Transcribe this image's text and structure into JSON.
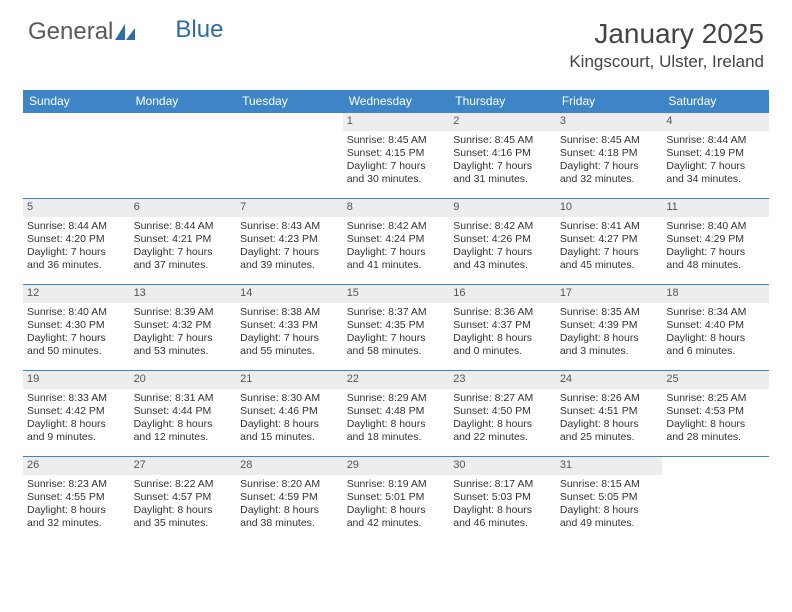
{
  "logo": {
    "text1": "General",
    "text2": "Blue"
  },
  "title": "January 2025",
  "location": "Kingscourt, Ulster, Ireland",
  "header_bg": "#3d85c6",
  "daynum_bg": "#ededed",
  "border_color": "#3d85c6",
  "font_size_title": 28,
  "font_size_location": 17,
  "font_size_dayhdr": 12,
  "font_size_cell": 10.5,
  "dayNames": [
    "Sunday",
    "Monday",
    "Tuesday",
    "Wednesday",
    "Thursday",
    "Friday",
    "Saturday"
  ],
  "weeks": [
    [
      {
        "n": "",
        "sr": "",
        "ss": "",
        "dl": ""
      },
      {
        "n": "",
        "sr": "",
        "ss": "",
        "dl": ""
      },
      {
        "n": "",
        "sr": "",
        "ss": "",
        "dl": ""
      },
      {
        "n": "1",
        "sr": "Sunrise: 8:45 AM",
        "ss": "Sunset: 4:15 PM",
        "dl": "Daylight: 7 hours and 30 minutes."
      },
      {
        "n": "2",
        "sr": "Sunrise: 8:45 AM",
        "ss": "Sunset: 4:16 PM",
        "dl": "Daylight: 7 hours and 31 minutes."
      },
      {
        "n": "3",
        "sr": "Sunrise: 8:45 AM",
        "ss": "Sunset: 4:18 PM",
        "dl": "Daylight: 7 hours and 32 minutes."
      },
      {
        "n": "4",
        "sr": "Sunrise: 8:44 AM",
        "ss": "Sunset: 4:19 PM",
        "dl": "Daylight: 7 hours and 34 minutes."
      }
    ],
    [
      {
        "n": "5",
        "sr": "Sunrise: 8:44 AM",
        "ss": "Sunset: 4:20 PM",
        "dl": "Daylight: 7 hours and 36 minutes."
      },
      {
        "n": "6",
        "sr": "Sunrise: 8:44 AM",
        "ss": "Sunset: 4:21 PM",
        "dl": "Daylight: 7 hours and 37 minutes."
      },
      {
        "n": "7",
        "sr": "Sunrise: 8:43 AM",
        "ss": "Sunset: 4:23 PM",
        "dl": "Daylight: 7 hours and 39 minutes."
      },
      {
        "n": "8",
        "sr": "Sunrise: 8:42 AM",
        "ss": "Sunset: 4:24 PM",
        "dl": "Daylight: 7 hours and 41 minutes."
      },
      {
        "n": "9",
        "sr": "Sunrise: 8:42 AM",
        "ss": "Sunset: 4:26 PM",
        "dl": "Daylight: 7 hours and 43 minutes."
      },
      {
        "n": "10",
        "sr": "Sunrise: 8:41 AM",
        "ss": "Sunset: 4:27 PM",
        "dl": "Daylight: 7 hours and 45 minutes."
      },
      {
        "n": "11",
        "sr": "Sunrise: 8:40 AM",
        "ss": "Sunset: 4:29 PM",
        "dl": "Daylight: 7 hours and 48 minutes."
      }
    ],
    [
      {
        "n": "12",
        "sr": "Sunrise: 8:40 AM",
        "ss": "Sunset: 4:30 PM",
        "dl": "Daylight: 7 hours and 50 minutes."
      },
      {
        "n": "13",
        "sr": "Sunrise: 8:39 AM",
        "ss": "Sunset: 4:32 PM",
        "dl": "Daylight: 7 hours and 53 minutes."
      },
      {
        "n": "14",
        "sr": "Sunrise: 8:38 AM",
        "ss": "Sunset: 4:33 PM",
        "dl": "Daylight: 7 hours and 55 minutes."
      },
      {
        "n": "15",
        "sr": "Sunrise: 8:37 AM",
        "ss": "Sunset: 4:35 PM",
        "dl": "Daylight: 7 hours and 58 minutes."
      },
      {
        "n": "16",
        "sr": "Sunrise: 8:36 AM",
        "ss": "Sunset: 4:37 PM",
        "dl": "Daylight: 8 hours and 0 minutes."
      },
      {
        "n": "17",
        "sr": "Sunrise: 8:35 AM",
        "ss": "Sunset: 4:39 PM",
        "dl": "Daylight: 8 hours and 3 minutes."
      },
      {
        "n": "18",
        "sr": "Sunrise: 8:34 AM",
        "ss": "Sunset: 4:40 PM",
        "dl": "Daylight: 8 hours and 6 minutes."
      }
    ],
    [
      {
        "n": "19",
        "sr": "Sunrise: 8:33 AM",
        "ss": "Sunset: 4:42 PM",
        "dl": "Daylight: 8 hours and 9 minutes."
      },
      {
        "n": "20",
        "sr": "Sunrise: 8:31 AM",
        "ss": "Sunset: 4:44 PM",
        "dl": "Daylight: 8 hours and 12 minutes."
      },
      {
        "n": "21",
        "sr": "Sunrise: 8:30 AM",
        "ss": "Sunset: 4:46 PM",
        "dl": "Daylight: 8 hours and 15 minutes."
      },
      {
        "n": "22",
        "sr": "Sunrise: 8:29 AM",
        "ss": "Sunset: 4:48 PM",
        "dl": "Daylight: 8 hours and 18 minutes."
      },
      {
        "n": "23",
        "sr": "Sunrise: 8:27 AM",
        "ss": "Sunset: 4:50 PM",
        "dl": "Daylight: 8 hours and 22 minutes."
      },
      {
        "n": "24",
        "sr": "Sunrise: 8:26 AM",
        "ss": "Sunset: 4:51 PM",
        "dl": "Daylight: 8 hours and 25 minutes."
      },
      {
        "n": "25",
        "sr": "Sunrise: 8:25 AM",
        "ss": "Sunset: 4:53 PM",
        "dl": "Daylight: 8 hours and 28 minutes."
      }
    ],
    [
      {
        "n": "26",
        "sr": "Sunrise: 8:23 AM",
        "ss": "Sunset: 4:55 PM",
        "dl": "Daylight: 8 hours and 32 minutes."
      },
      {
        "n": "27",
        "sr": "Sunrise: 8:22 AM",
        "ss": "Sunset: 4:57 PM",
        "dl": "Daylight: 8 hours and 35 minutes."
      },
      {
        "n": "28",
        "sr": "Sunrise: 8:20 AM",
        "ss": "Sunset: 4:59 PM",
        "dl": "Daylight: 8 hours and 38 minutes."
      },
      {
        "n": "29",
        "sr": "Sunrise: 8:19 AM",
        "ss": "Sunset: 5:01 PM",
        "dl": "Daylight: 8 hours and 42 minutes."
      },
      {
        "n": "30",
        "sr": "Sunrise: 8:17 AM",
        "ss": "Sunset: 5:03 PM",
        "dl": "Daylight: 8 hours and 46 minutes."
      },
      {
        "n": "31",
        "sr": "Sunrise: 8:15 AM",
        "ss": "Sunset: 5:05 PM",
        "dl": "Daylight: 8 hours and 49 minutes."
      },
      {
        "n": "",
        "sr": "",
        "ss": "",
        "dl": ""
      }
    ]
  ]
}
